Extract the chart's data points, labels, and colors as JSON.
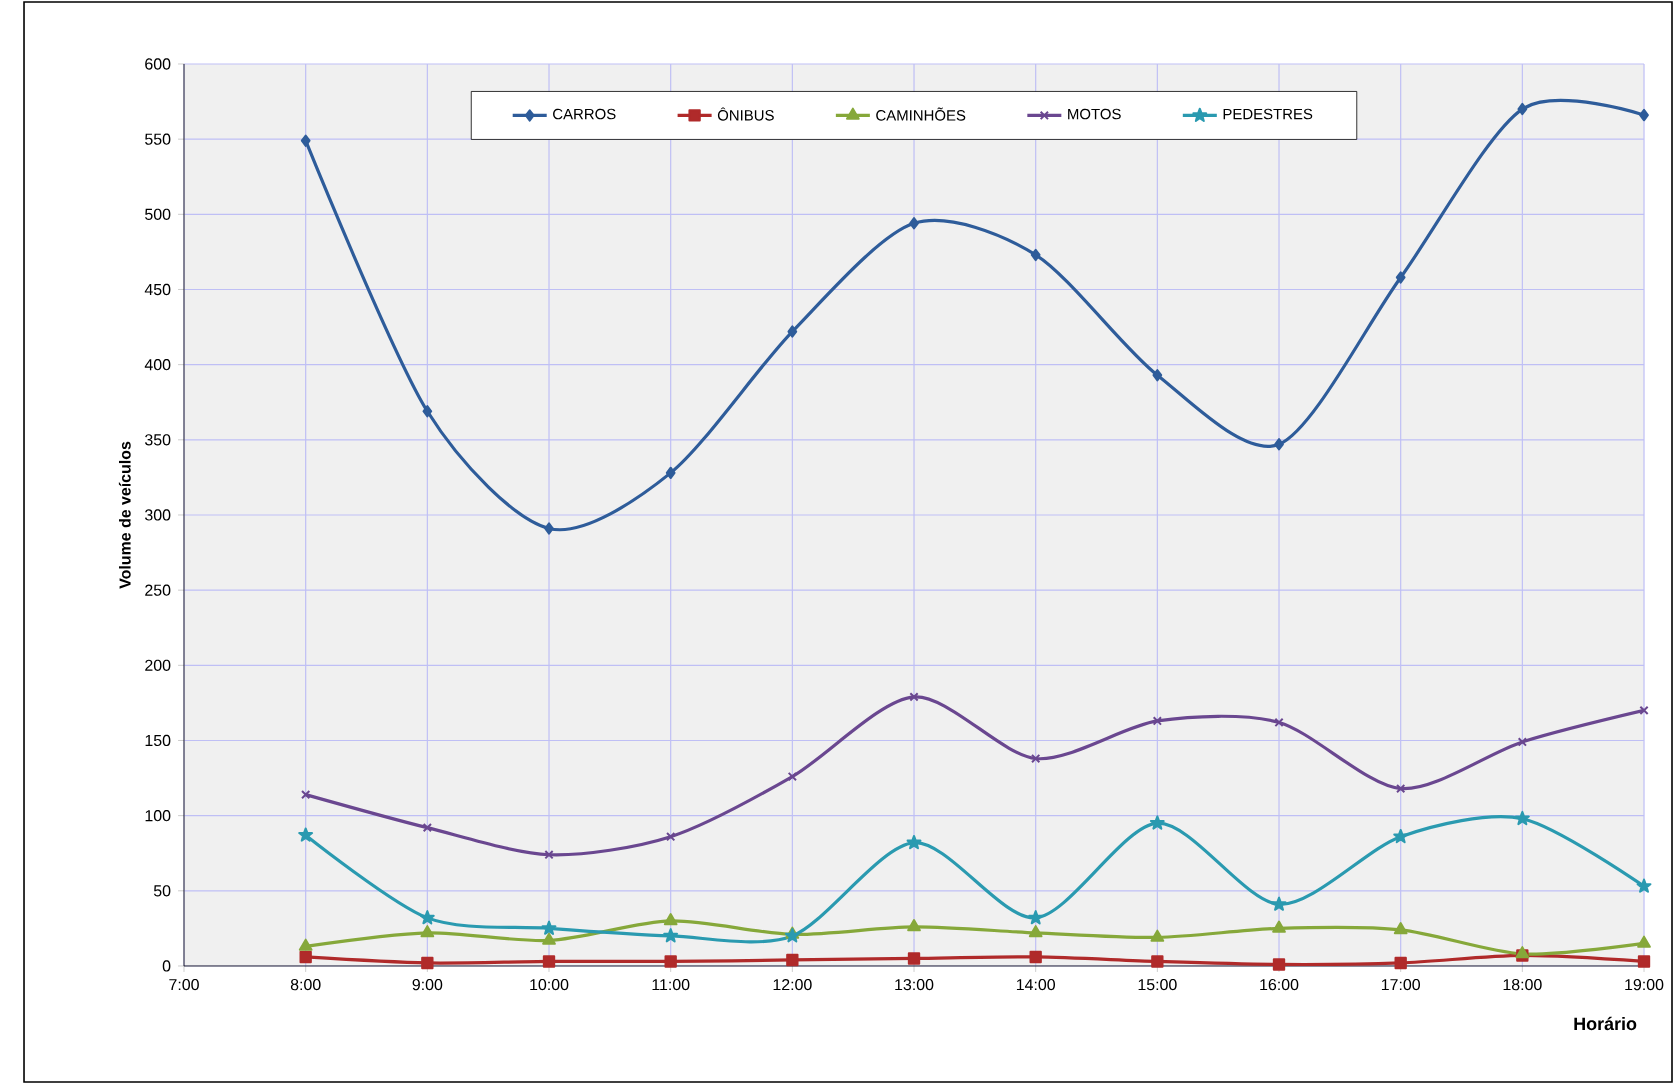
{
  "chart_data": {
    "type": "line",
    "xlabel": "Horário",
    "ylabel": "Volume de veículos",
    "x": [
      8,
      9,
      10,
      11,
      12,
      13,
      14,
      15,
      16,
      17,
      18,
      19
    ],
    "xlim": [
      7,
      19
    ],
    "xticks": [
      {
        "value": 7,
        "label": "7:00"
      },
      {
        "value": 8,
        "label": "8:00"
      },
      {
        "value": 9,
        "label": "9:00"
      },
      {
        "value": 10,
        "label": "10:00"
      },
      {
        "value": 11,
        "label": "11:00"
      },
      {
        "value": 12,
        "label": "12:00"
      },
      {
        "value": 13,
        "label": "13:00"
      },
      {
        "value": 14,
        "label": "14:00"
      },
      {
        "value": 15,
        "label": "15:00"
      },
      {
        "value": 16,
        "label": "16:00"
      },
      {
        "value": 17,
        "label": "17:00"
      },
      {
        "value": 18,
        "label": "18:00"
      },
      {
        "value": 19,
        "label": "19:00"
      }
    ],
    "ylim": [
      0,
      600
    ],
    "yticks": [
      0,
      50,
      100,
      150,
      200,
      250,
      300,
      350,
      400,
      450,
      500,
      550,
      600
    ],
    "grid": true,
    "legend": "top",
    "line_style": "solid",
    "series": [
      {
        "name": "CARROS",
        "color": "#2e5c9a",
        "marker": "diamond",
        "values": [
          549,
          369,
          291,
          328,
          422,
          494,
          473,
          393,
          347,
          458,
          570,
          566
        ]
      },
      {
        "name": "ÔNIBUS",
        "color": "#b02a2a",
        "marker": "square",
        "values": [
          6,
          2,
          3,
          3,
          4,
          5,
          6,
          3,
          1,
          2,
          7,
          3
        ]
      },
      {
        "name": "CAMINHÕES",
        "color": "#86a83a",
        "marker": "triangle",
        "values": [
          13,
          22,
          17,
          30,
          21,
          26,
          22,
          19,
          25,
          24,
          8,
          15
        ]
      },
      {
        "name": "MOTOS",
        "color": "#6a4790",
        "marker": "cross",
        "values": [
          114,
          92,
          74,
          86,
          126,
          179,
          138,
          163,
          162,
          118,
          149,
          170
        ]
      },
      {
        "name": "PEDESTRES",
        "color": "#2a9ab0",
        "marker": "star",
        "values": [
          87,
          32,
          25,
          20,
          20,
          82,
          32,
          95,
          41,
          86,
          98,
          53
        ]
      }
    ]
  }
}
